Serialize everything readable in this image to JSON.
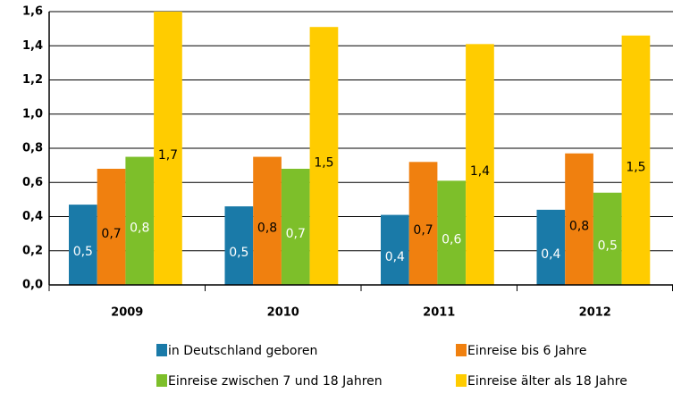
{
  "chart_data": {
    "type": "bar",
    "categories": [
      "2009",
      "2010",
      "2011",
      "2012"
    ],
    "ylim": [
      0,
      1.6
    ],
    "yticks": [
      {
        "value": 0,
        "label": "0,0"
      },
      {
        "value": 0.2,
        "label": "0,2"
      },
      {
        "value": 0.4,
        "label": "0,4"
      },
      {
        "value": 0.6,
        "label": "0,6"
      },
      {
        "value": 0.8,
        "label": "0,8"
      },
      {
        "value": 1.0,
        "label": "1,0"
      },
      {
        "value": 1.2,
        "label": "1,2"
      },
      {
        "value": 1.4,
        "label": "1,4"
      },
      {
        "value": 1.6,
        "label": "1,6"
      }
    ],
    "grid": true,
    "series": [
      {
        "name": "in Deutschland geboren",
        "color": "#1a7aa8",
        "label_color": "#ffffff",
        "values": [
          0.47,
          0.46,
          0.41,
          0.44
        ],
        "value_labels": [
          "0,5",
          "0,5",
          "0,4",
          "0,4"
        ]
      },
      {
        "name": "Einreise bis 6 Jahre",
        "color": "#f0800f",
        "label_color": "#000000",
        "values": [
          0.68,
          0.75,
          0.72,
          0.77
        ],
        "value_labels": [
          "0,7",
          "0,8",
          "0,7",
          "0,8"
        ]
      },
      {
        "name": "Einreise zwischen 7 und 18 Jahren",
        "color": "#7dbf2a",
        "label_color": "#ffffff",
        "values": [
          0.75,
          0.68,
          0.61,
          0.54
        ],
        "value_labels": [
          "0,8",
          "0,7",
          "0,6",
          "0,5"
        ]
      },
      {
        "name": "Einreise älter als 18 Jahre",
        "color": "#ffcc00",
        "label_color": "#000000",
        "values": [
          1.7,
          1.51,
          1.41,
          1.46
        ],
        "value_labels": [
          "1,7",
          "1,5",
          "1,4",
          "1,5"
        ]
      }
    ]
  }
}
